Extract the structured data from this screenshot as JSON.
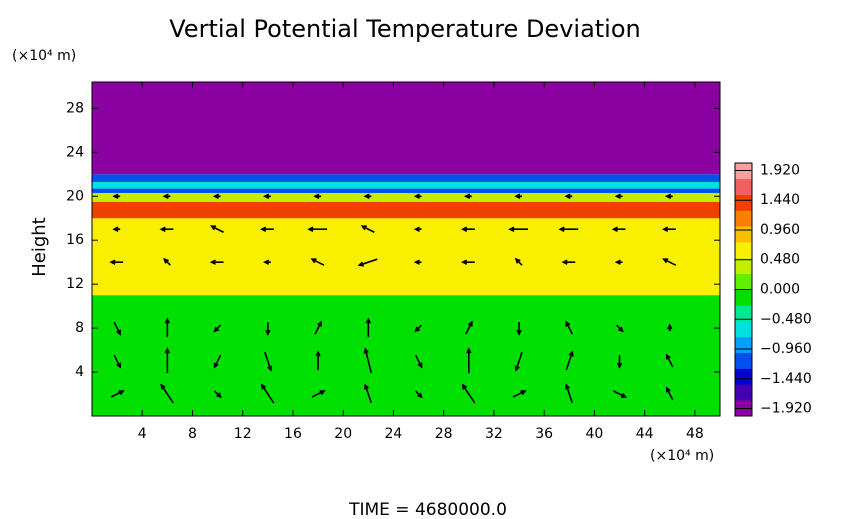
{
  "chart_data": {
    "type": "contour",
    "title": "Vertial Potential Temperature Deviation",
    "ylabel": "Height",
    "y_unit": "(×10⁴ m)",
    "x_unit": "(×10⁴ m)",
    "footer": "TIME = 4680000.0",
    "xlim": [
      0,
      50
    ],
    "ylim": [
      0,
      30.4
    ],
    "xticks": [
      4,
      8,
      12,
      16,
      20,
      24,
      28,
      32,
      36,
      40,
      44,
      48
    ],
    "yticks": [
      4,
      8,
      12,
      16,
      20,
      24,
      28
    ],
    "heights": [
      0,
      11,
      18,
      19.5,
      20.3,
      20.7,
      21.3,
      22,
      30.4
    ],
    "values": [
      -0.1,
      0.7,
      1.5,
      0.3,
      -1.2,
      -0.6,
      -1.2,
      -1.92
    ],
    "clim": [
      -2.04,
      2.04
    ],
    "colormap": [
      "#8b00a0",
      "#4400b0",
      "#0000d0",
      "#0050f0",
      "#00a0ff",
      "#00e0e0",
      "#00e890",
      "#00e000",
      "#60f000",
      "#c0f000",
      "#f8f000",
      "#f8c000",
      "#f88000",
      "#f04000",
      "#f06060",
      "#f8a0a0"
    ],
    "cticks": [
      {
        "value": 1.92,
        "label": "1.920"
      },
      {
        "value": 1.44,
        "label": "1.440"
      },
      {
        "value": 0.96,
        "label": "0.960"
      },
      {
        "value": 0.48,
        "label": "0.480"
      },
      {
        "value": 0,
        "label": "0.000"
      },
      {
        "value": -0.48,
        "label": "−0.480"
      },
      {
        "value": -0.96,
        "label": "−0.960"
      },
      {
        "value": -1.44,
        "label": "−1.440"
      },
      {
        "value": -1.92,
        "label": "−1.920"
      }
    ],
    "vectors": {
      "x": [
        2,
        6,
        10,
        14,
        18,
        22,
        26,
        30,
        34,
        38,
        42,
        46
      ],
      "y": [
        2,
        5,
        8,
        14,
        17,
        20
      ],
      "u": [
        [
          2,
          -2,
          1,
          -2,
          2,
          -1,
          1,
          -2,
          2,
          -1,
          2,
          -1
        ],
        [
          1,
          0,
          -1,
          1,
          0,
          -1,
          1,
          0,
          -1,
          1,
          0,
          -1
        ],
        [
          1,
          0,
          -1,
          0,
          1,
          0,
          -1,
          1,
          0,
          -1,
          1,
          0
        ],
        [
          -2,
          -1,
          -2,
          -1,
          -2,
          -3,
          -1,
          -2,
          -1,
          -2,
          -1,
          -2
        ],
        [
          -1,
          -2,
          -2,
          -2,
          -3,
          -2,
          -1,
          -2,
          -3,
          -3,
          -2,
          -2
        ],
        [
          -1,
          -1,
          -1,
          -1,
          -1,
          -1,
          -1,
          -1,
          -1,
          -1,
          -1,
          -1
        ]
      ],
      "w": [
        [
          1,
          3,
          -1,
          3,
          1,
          3,
          -1,
          3,
          1,
          3,
          -1,
          2
        ],
        [
          -2,
          4,
          -2,
          -3,
          3,
          4,
          -2,
          4,
          -3,
          3,
          -2,
          2
        ],
        [
          -2,
          3,
          -1,
          -2,
          2,
          3,
          -1,
          2,
          -2,
          2,
          -1,
          1
        ],
        [
          0,
          1,
          0,
          0,
          1,
          -1,
          0,
          0,
          1,
          0,
          0,
          1
        ],
        [
          0,
          0,
          1,
          0,
          0,
          1,
          0,
          0,
          0,
          0,
          0,
          0
        ],
        [
          0,
          0,
          0,
          0,
          0,
          0,
          0,
          0,
          0,
          0,
          0,
          0
        ]
      ]
    }
  }
}
